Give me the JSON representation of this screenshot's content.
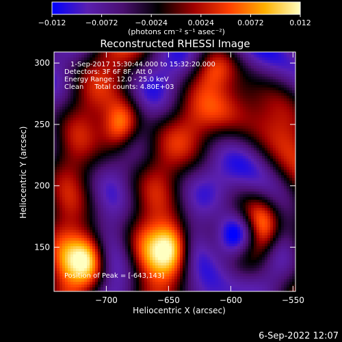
{
  "chart_data": {
    "type": "heatmap",
    "title": "Reconstructed RHESSI Image",
    "colorbar": {
      "min": -0.012,
      "max": 0.012,
      "tick_values": [
        -0.012,
        -0.0072,
        -0.0024,
        0.0024,
        0.0072,
        0.012
      ],
      "tick_labels": [
        "−0.012",
        "−0.0072",
        "−0.0024",
        "0.0024",
        "0.0072",
        "0.012"
      ],
      "units_label": "(photons cm⁻² s⁻¹ asec⁻²)",
      "colormap": [
        "#0000ff",
        "#5a1fb0",
        "#4a0f70",
        "#000000",
        "#a00000",
        "#ff4000",
        "#ffb000",
        "#ffffc0"
      ]
    },
    "info_lines": [
      "1-Sep-2017 15:30:44.000 to 15:32:20.000",
      "Detectors: 3F 6F 8F, Att 0",
      "Energy Range: 12.0 - 25.0 keV",
      "Clean     Total counts: 4.80E+03"
    ],
    "peak_label": "Position of Peak = [-643,143]",
    "xlabel": "Heliocentric X (arcsec)",
    "ylabel": "Heliocentric Y (arcsec)",
    "xlim": [
      -742,
      -548
    ],
    "ylim": [
      114,
      309
    ],
    "xticks": [
      -700,
      -650,
      -600,
      -550
    ],
    "xtick_labels": [
      "−700",
      "−650",
      "−600",
      "−550"
    ],
    "yticks": [
      150,
      200,
      250,
      300
    ],
    "ytick_labels": [
      "150",
      "200",
      "250",
      "300"
    ],
    "peak": [
      -643,
      143
    ],
    "sources": [
      {
        "x": -653,
        "y": 150,
        "value": 0.012
      },
      {
        "x": -720,
        "y": 140,
        "value": 0.011
      },
      {
        "x": -580,
        "y": 165,
        "value": 0.009
      },
      {
        "x": -598,
        "y": 158,
        "value": -0.012
      },
      {
        "x": -690,
        "y": 250,
        "value": 0.006
      },
      {
        "x": -612,
        "y": 290,
        "value": 0.005
      }
    ],
    "grid": false,
    "legend": "none"
  },
  "footer_timestamp": "6-Sep-2022 12:07"
}
